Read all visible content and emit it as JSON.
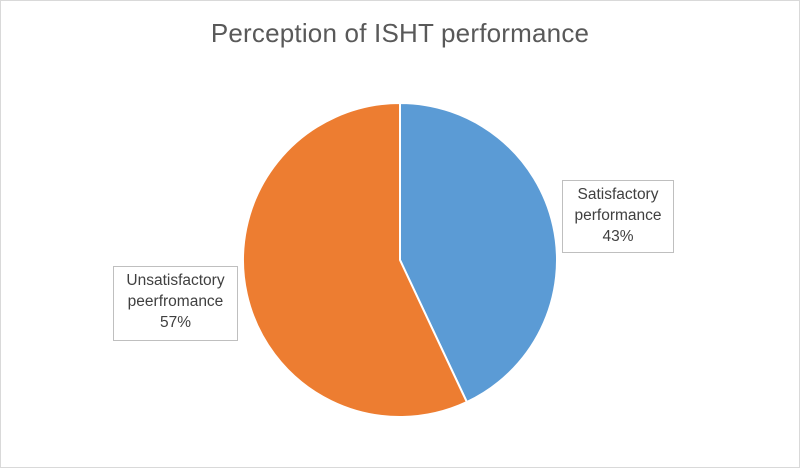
{
  "chart_data": {
    "type": "pie",
    "title": "Perception of ISHT performance",
    "slices": [
      {
        "label_line1": "Satisfactory",
        "label_line2": "performance",
        "value": 43,
        "percent_label": "43%",
        "color": "#5b9bd5"
      },
      {
        "label_line1": "Unsatisfactory",
        "label_line2": "peerfromance",
        "value": 57,
        "percent_label": "57%",
        "color": "#ed7d31"
      }
    ],
    "start_angle": "12 o'clock",
    "direction": "clockwise",
    "legend": "none",
    "slice_border_color": "#ffffff"
  }
}
